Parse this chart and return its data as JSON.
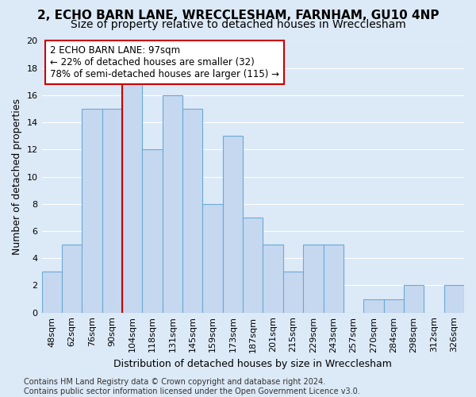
{
  "title1": "2, ECHO BARN LANE, WRECCLESHAM, FARNHAM, GU10 4NP",
  "title2": "Size of property relative to detached houses in Wrecclesham",
  "xlabel": "Distribution of detached houses by size in Wrecclesham",
  "ylabel": "Number of detached properties",
  "bar_labels": [
    "48sqm",
    "62sqm",
    "76sqm",
    "90sqm",
    "104sqm",
    "118sqm",
    "131sqm",
    "145sqm",
    "159sqm",
    "173sqm",
    "187sqm",
    "201sqm",
    "215sqm",
    "229sqm",
    "243sqm",
    "257sqm",
    "270sqm",
    "284sqm",
    "298sqm",
    "312sqm",
    "326sqm"
  ],
  "bar_values": [
    3,
    5,
    15,
    15,
    17,
    12,
    16,
    15,
    8,
    13,
    7,
    5,
    3,
    5,
    5,
    0,
    1,
    1,
    2,
    0,
    2
  ],
  "bar_color": "#c5d8f0",
  "bar_edge_color": "#6aaad4",
  "vline_x_index": 4,
  "vline_color": "#cc0000",
  "annotation_text": "2 ECHO BARN LANE: 97sqm\n← 22% of detached houses are smaller (32)\n78% of semi-detached houses are larger (115) →",
  "annotation_box_color": "#ffffff",
  "annotation_box_edge_color": "#cc0000",
  "ylim": [
    0,
    20
  ],
  "yticks": [
    0,
    2,
    4,
    6,
    8,
    10,
    12,
    14,
    16,
    18,
    20
  ],
  "footer": "Contains HM Land Registry data © Crown copyright and database right 2024.\nContains public sector information licensed under the Open Government Licence v3.0.",
  "page_bg_color": "#dce9f7",
  "plot_bg_color": "#dce9f7",
  "grid_color": "#ffffff",
  "title1_fontsize": 11,
  "title2_fontsize": 10,
  "axis_label_fontsize": 9,
  "tick_fontsize": 8,
  "annotation_fontsize": 8.5,
  "footer_fontsize": 7
}
